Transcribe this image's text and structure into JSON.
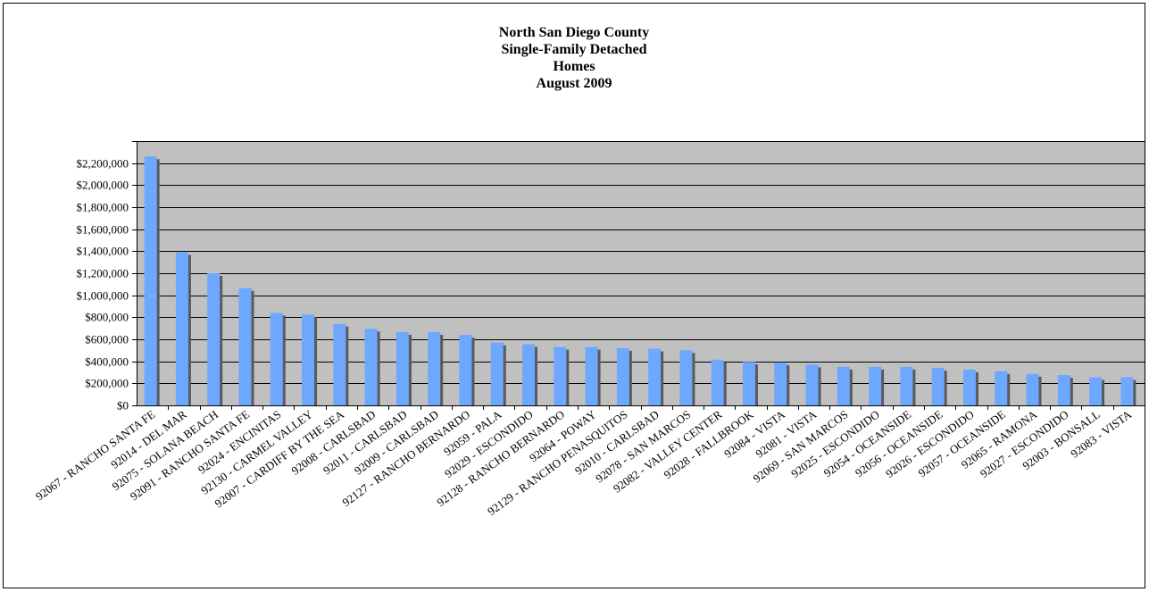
{
  "chart_data": {
    "type": "bar",
    "title_lines": [
      "North San Diego County",
      "Single-Family Detached",
      "Homes",
      "August 2009"
    ],
    "xlabel": "",
    "ylabel": "",
    "ylim": [
      0,
      2400000
    ],
    "ytick_step": 200000,
    "ytick_labels": [
      "$0",
      "$200,000",
      "$400,000",
      "$600,000",
      "$800,000",
      "$1,000,000",
      "$1,200,000",
      "$1,400,000",
      "$1,600,000",
      "$1,800,000",
      "$2,000,000",
      "$2,200,000"
    ],
    "grid": true,
    "legend": "none",
    "colors": {
      "plot_bg": "#c0c0c0",
      "bar": "#6ea8fe",
      "bar_shadow": "#5a5a5a",
      "grid": "#000000"
    },
    "categories": [
      "92067 - RANCHO SANTA FE",
      "92014 - DEL MAR",
      "92075 - SOLANA BEACH",
      "92091 - RANCHO SANTA FE",
      "92024 - ENCINITAS",
      "92130 - CARMEL VALLEY",
      "92007 - CARDIFF BY THE SEA",
      "92008 - CARLSBAD",
      "92011 - CARLSBAD",
      "92009 - CARLSBAD",
      "92127 - RANCHO BERNARDO",
      "92059 - PALA",
      "92029 - ESCONDIDO",
      "92128 - RANCHO BERNARDO",
      "92064 - POWAY",
      "92129 - RANCHO PENASQUITOS",
      "92010 - CARLSBAD",
      "92078 - SAN MARCOS",
      "92082 - VALLEY CENTER",
      "92028 - FALLBROOK",
      "92084 - VISTA",
      "92081 - VISTA",
      "92069 - SAN MARCOS",
      "92025 - ESCONDIDO",
      "92054 - OCEANSIDE",
      "92056 - OCEANSIDE",
      "92026 - ESCONDIDO",
      "92057 - OCEANSIDE",
      "92065 - RAMONA",
      "92027 - ESCONDIDO",
      "92003 - BONSALL",
      "92083 - VISTA"
    ],
    "values": [
      2260000,
      1390000,
      1200000,
      1065000,
      840000,
      825000,
      740000,
      695000,
      665000,
      665000,
      640000,
      570000,
      555000,
      530000,
      530000,
      520000,
      515000,
      500000,
      415000,
      395000,
      390000,
      370000,
      350000,
      350000,
      350000,
      340000,
      325000,
      310000,
      285000,
      275000,
      255000,
      255000
    ]
  }
}
